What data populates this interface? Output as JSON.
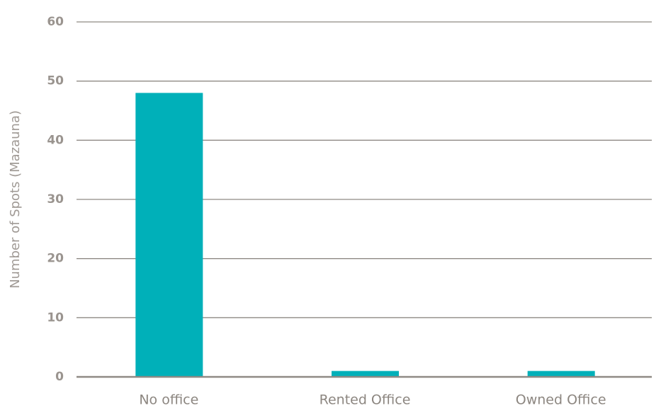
{
  "chart_data": {
    "type": "bar",
    "y_label": "Number of Spots (Mazauna)",
    "categories": [
      "No office",
      "Rented Office",
      "Owned Office"
    ],
    "values": [
      48,
      1,
      1
    ],
    "color": "#00b0b9",
    "ylim": [
      0,
      60
    ],
    "yticks": [
      0,
      10,
      20,
      30,
      40,
      50,
      60
    ],
    "grid": true
  }
}
